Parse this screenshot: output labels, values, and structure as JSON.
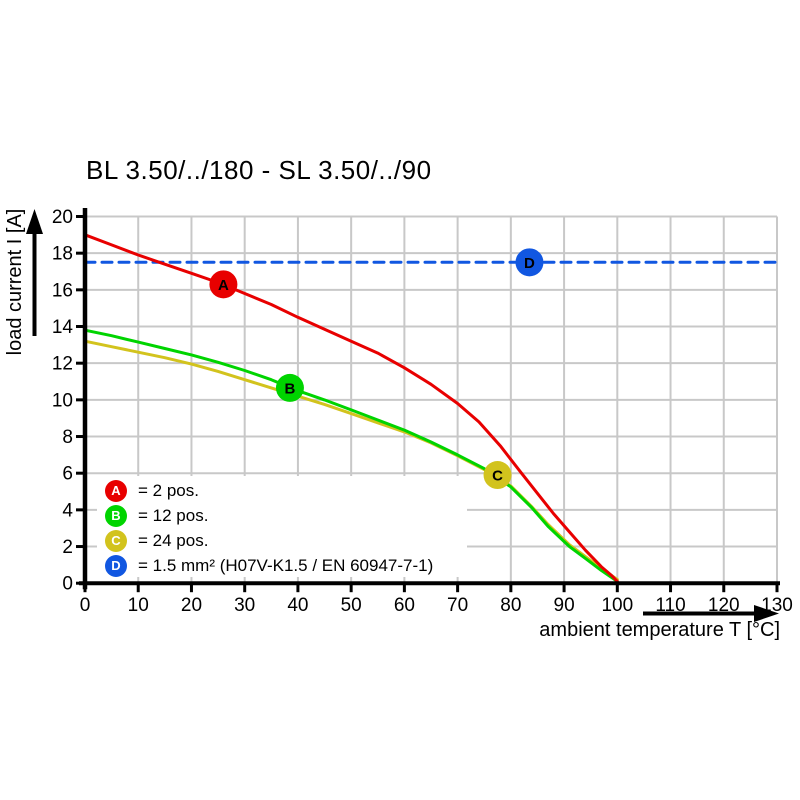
{
  "chart_data": {
    "type": "line",
    "title": "BL 3.50/../180 - SL 3.50/../90",
    "xlabel": "ambient temperature T [°C]",
    "ylabel": "load current I [A]",
    "xlim": [
      0,
      130
    ],
    "ylim": [
      0,
      20
    ],
    "xticks": [
      0,
      10,
      20,
      30,
      40,
      50,
      60,
      70,
      80,
      90,
      100,
      110,
      120,
      130
    ],
    "yticks": [
      0,
      2,
      4,
      6,
      8,
      10,
      12,
      14,
      16,
      18,
      20
    ],
    "grid": true,
    "grid_color": "#c8c8c8",
    "axis_color": "#000000",
    "marker_text_color": "#ffffff",
    "legend_position": "bottom-left inside plot",
    "series": [
      {
        "id": "A",
        "legend": "= 2 pos.",
        "color": "#e80000",
        "style": "solid",
        "marker_at": [
          26,
          16.3
        ],
        "points": [
          [
            0,
            19.0
          ],
          [
            5,
            18.45
          ],
          [
            10,
            17.9
          ],
          [
            15,
            17.4
          ],
          [
            20,
            16.9
          ],
          [
            25,
            16.4
          ],
          [
            30,
            15.8
          ],
          [
            35,
            15.2
          ],
          [
            40,
            14.5
          ],
          [
            45,
            13.85
          ],
          [
            50,
            13.2
          ],
          [
            55,
            12.55
          ],
          [
            60,
            11.75
          ],
          [
            65,
            10.85
          ],
          [
            70,
            9.8
          ],
          [
            74,
            8.8
          ],
          [
            78,
            7.5
          ],
          [
            82,
            6.0
          ],
          [
            85,
            4.9
          ],
          [
            88,
            3.8
          ],
          [
            91,
            2.8
          ],
          [
            94,
            1.8
          ],
          [
            97,
            0.9
          ],
          [
            99,
            0.4
          ],
          [
            100,
            0.1
          ]
        ]
      },
      {
        "id": "B",
        "legend": "= 12 pos.",
        "color": "#00d400",
        "style": "solid",
        "marker_at": [
          38.5,
          10.65
        ],
        "points": [
          [
            0,
            13.8
          ],
          [
            5,
            13.5
          ],
          [
            10,
            13.15
          ],
          [
            15,
            12.8
          ],
          [
            20,
            12.45
          ],
          [
            25,
            12.05
          ],
          [
            30,
            11.6
          ],
          [
            35,
            11.1
          ],
          [
            40,
            10.5
          ],
          [
            45,
            10.0
          ],
          [
            50,
            9.45
          ],
          [
            55,
            8.9
          ],
          [
            60,
            8.35
          ],
          [
            65,
            7.7
          ],
          [
            70,
            7.0
          ],
          [
            75,
            6.25
          ],
          [
            80,
            5.25
          ],
          [
            84,
            4.1
          ],
          [
            87,
            3.1
          ],
          [
            91,
            2.0
          ],
          [
            94,
            1.35
          ],
          [
            97,
            0.7
          ],
          [
            100,
            0.1
          ]
        ]
      },
      {
        "id": "C",
        "legend": "= 24 pos.",
        "color": "#d2c31d",
        "style": "solid",
        "marker_at": [
          77.5,
          5.9
        ],
        "points": [
          [
            0,
            13.2
          ],
          [
            5,
            12.9
          ],
          [
            10,
            12.6
          ],
          [
            15,
            12.3
          ],
          [
            20,
            11.95
          ],
          [
            25,
            11.55
          ],
          [
            30,
            11.1
          ],
          [
            35,
            10.65
          ],
          [
            40,
            10.2
          ],
          [
            45,
            9.75
          ],
          [
            50,
            9.25
          ],
          [
            55,
            8.75
          ],
          [
            60,
            8.25
          ],
          [
            65,
            7.65
          ],
          [
            70,
            6.95
          ],
          [
            75,
            6.2
          ],
          [
            80,
            5.3
          ],
          [
            84,
            4.15
          ],
          [
            87,
            3.2
          ],
          [
            91,
            2.1
          ],
          [
            94,
            1.45
          ],
          [
            97,
            0.8
          ],
          [
            100,
            0.2
          ]
        ]
      },
      {
        "id": "D",
        "legend": "= 1.5 mm² (H07V-K1.5 / EN 60947-7-1)",
        "color": "#1157e1",
        "style": "dashed",
        "marker_at": [
          83.5,
          17.5
        ],
        "points": [
          [
            0,
            17.5
          ],
          [
            130,
            17.5
          ]
        ]
      }
    ]
  }
}
